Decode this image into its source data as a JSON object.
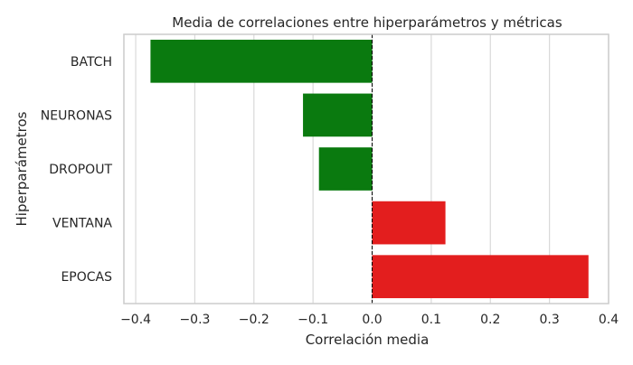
{
  "chart_data": {
    "type": "bar",
    "orientation": "horizontal",
    "title": "Media de correlaciones entre hiperparámetros y métricas",
    "xlabel": "Correlación media",
    "ylabel": "Hiperparámetros",
    "categories": [
      "BATCH",
      "NEURONAS",
      "DROPOUT",
      "VENTANA",
      "EPOCAS"
    ],
    "values": [
      -0.375,
      -0.117,
      -0.09,
      0.124,
      0.366
    ],
    "xlim": [
      -0.42,
      0.4
    ],
    "xticks": [
      -0.4,
      -0.3,
      -0.2,
      -0.1,
      0.0,
      0.1,
      0.2,
      0.3,
      0.4
    ],
    "xtick_labels": [
      "−0.4",
      "−0.3",
      "−0.2",
      "−0.1",
      "0.0",
      "0.1",
      "0.2",
      "0.3",
      "0.4"
    ],
    "grid": "vertical",
    "reference_line": 0,
    "colors": {
      "negative": "#0a7a0f",
      "positive": "#e31e1e",
      "grid": "#d9d9d9",
      "spine": "#cccccc",
      "refline": "#000000"
    }
  }
}
